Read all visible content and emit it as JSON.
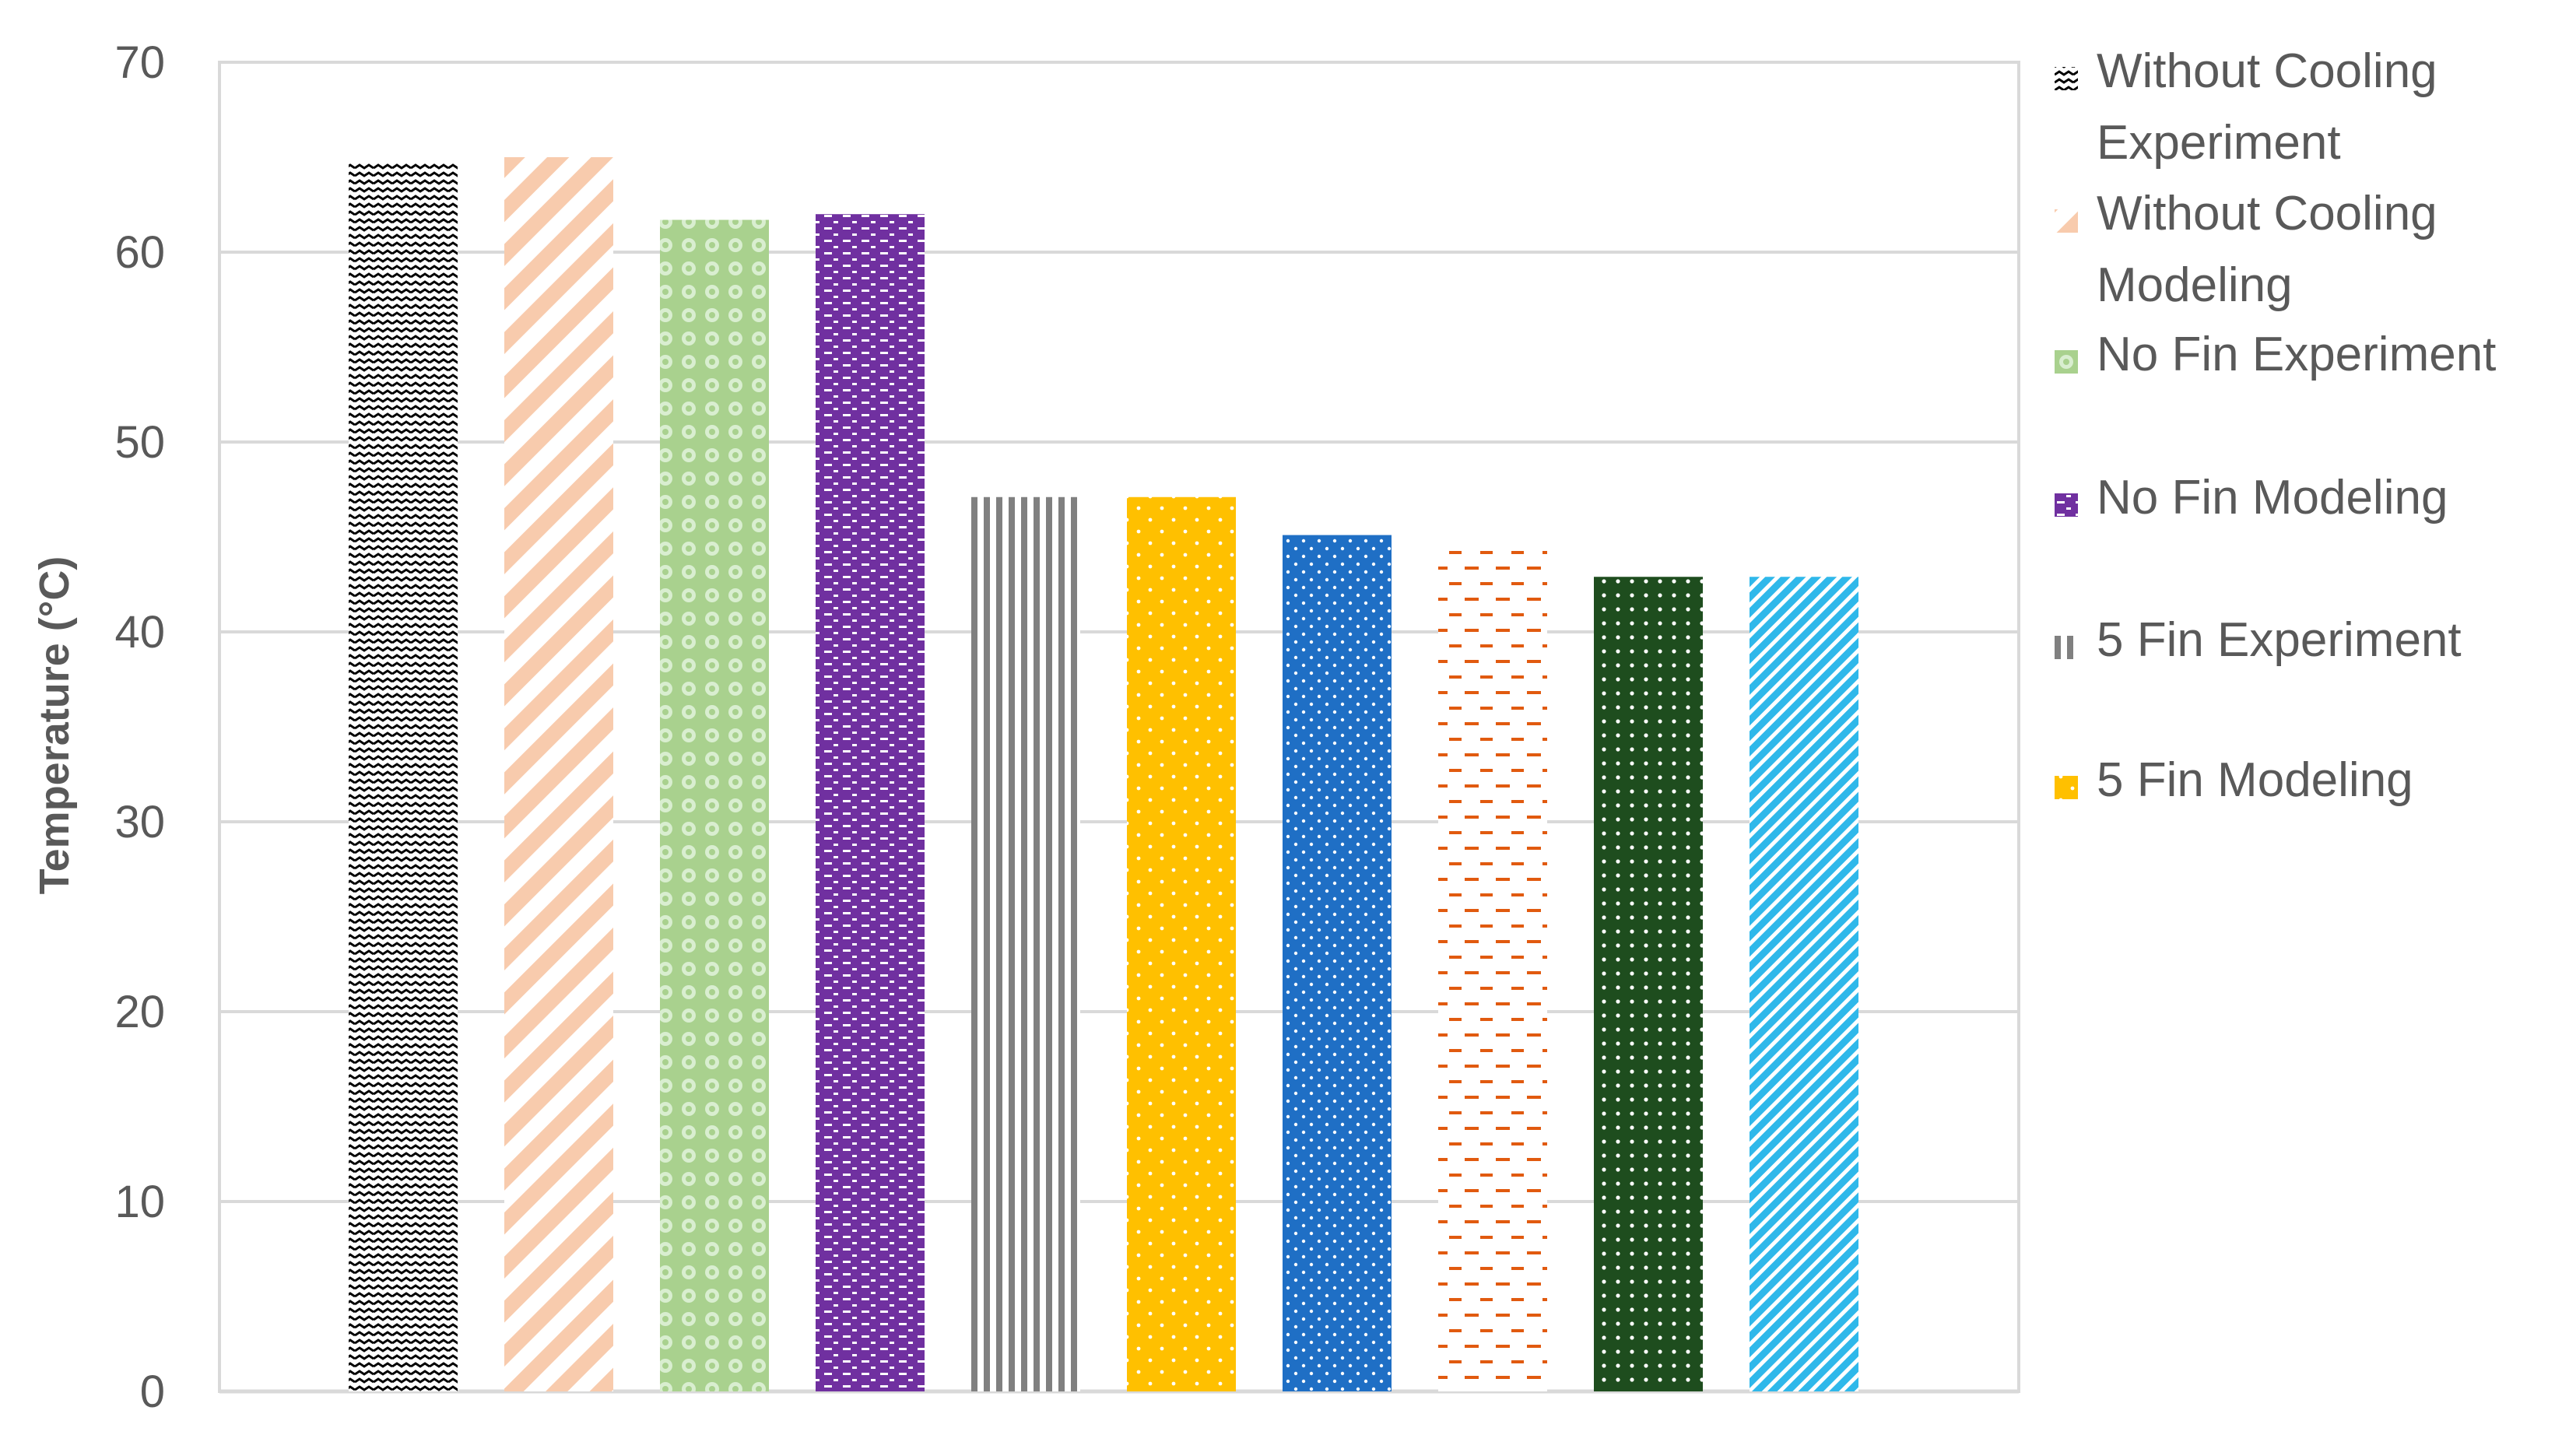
{
  "chart_data": {
    "type": "bar",
    "title": "",
    "xlabel": "",
    "ylabel": "Temperature (°C)",
    "ylim": [
      0,
      70
    ],
    "yticks": [
      0,
      10,
      20,
      30,
      40,
      50,
      60,
      70
    ],
    "grid": true,
    "legend_position": "right",
    "series": [
      {
        "name": "Without Cooling Experiment",
        "value": 64.7,
        "color": "#000000",
        "pattern": "zigzag"
      },
      {
        "name": "Without Cooling Modeling",
        "value": 65.0,
        "color": "#F8CBAD",
        "pattern": "diagonal"
      },
      {
        "name": "No Fin Experiment",
        "value": 61.7,
        "color": "#A9D18E",
        "pattern": "circles"
      },
      {
        "name": "No Fin Modeling",
        "value": 62.0,
        "color": "#7030A0",
        "pattern": "dashes-white"
      },
      {
        "name": "5 Fin Experiment",
        "value": 47.1,
        "color": "#808080",
        "pattern": "vertical"
      },
      {
        "name": "5 Fin Modeling",
        "value": 47.1,
        "color": "#FFC000",
        "pattern": "dots-sparse"
      },
      {
        "name": "",
        "value": 45.1,
        "color": "#1F6FC5",
        "pattern": "dots-dense"
      },
      {
        "name": "",
        "value": 44.8,
        "color": "#E15A0F",
        "pattern": "dashes-on-white"
      },
      {
        "name": "",
        "value": 42.9,
        "color": "#1E4D1E",
        "pattern": "grid-dots"
      },
      {
        "name": "",
        "value": 42.9,
        "color": "#2FB8EA",
        "pattern": "diagonal-fine"
      }
    ]
  }
}
